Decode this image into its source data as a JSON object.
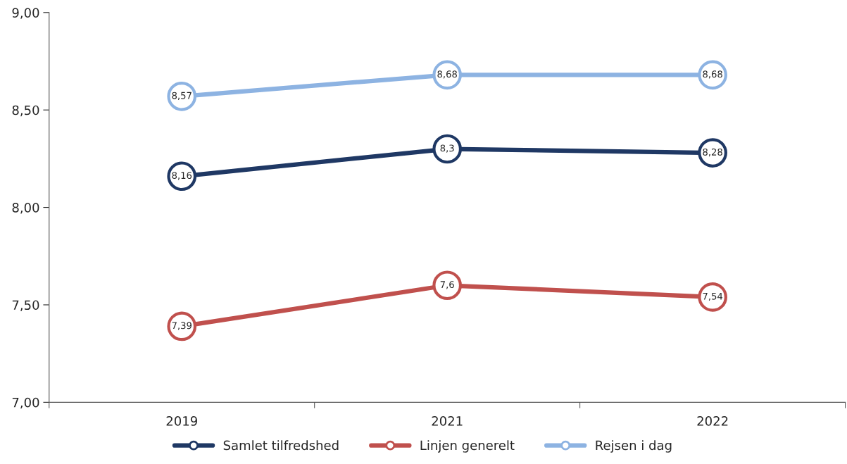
{
  "chart_data": {
    "type": "line",
    "categories": [
      "2019",
      "2021",
      "2022"
    ],
    "series": [
      {
        "name": "Samlet tilfredshed",
        "color": "#1f3864",
        "values": [
          8.16,
          8.3,
          8.28
        ],
        "value_labels": [
          "8,16",
          "8,3",
          "8,28"
        ]
      },
      {
        "name": "Linjen generelt",
        "color": "#c0504d",
        "values": [
          7.39,
          7.6,
          7.54
        ],
        "value_labels": [
          "7,39",
          "7,6",
          "7,54"
        ]
      },
      {
        "name": "Rejsen i dag",
        "color": "#8db3e2",
        "values": [
          8.57,
          8.68,
          8.68
        ],
        "value_labels": [
          "8,57",
          "8,68",
          "8,68"
        ]
      }
    ],
    "ylim": [
      7.0,
      9.0
    ],
    "yticks": [
      {
        "value": 7.0,
        "label": "7,00"
      },
      {
        "value": 7.5,
        "label": "7,50"
      },
      {
        "value": 8.0,
        "label": "8,00"
      },
      {
        "value": 8.5,
        "label": "8,50"
      },
      {
        "value": 9.0,
        "label": "9,00"
      }
    ],
    "marker": "circle",
    "line_style": "solid",
    "grid": false,
    "legend": "bottom"
  }
}
